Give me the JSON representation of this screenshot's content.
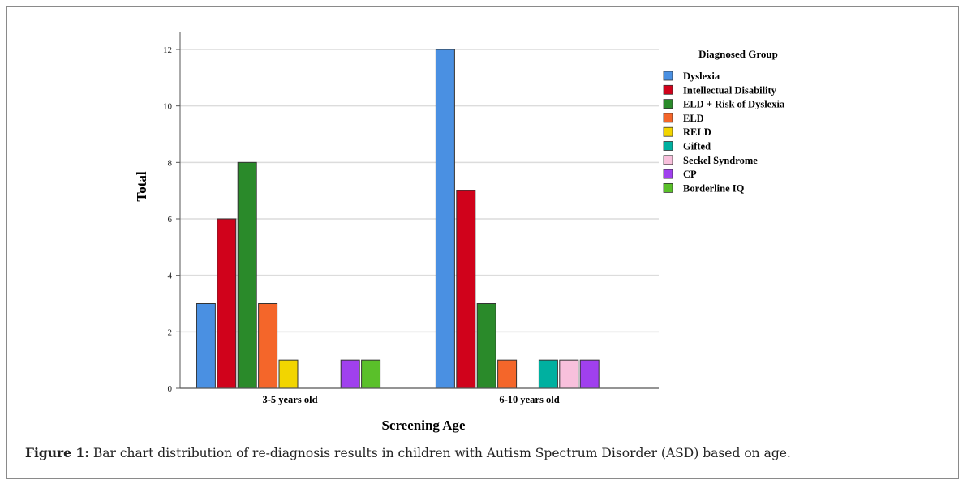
{
  "chart_data": {
    "type": "bar",
    "title": "",
    "xlabel": "Screening Age",
    "ylabel": "Total",
    "ylim": [
      0,
      12
    ],
    "yticks": [
      0,
      2,
      4,
      6,
      8,
      10,
      12
    ],
    "grid": true,
    "legend_title": "Diagnosed Group",
    "legend_position": "right",
    "categories": [
      "3-5 years old",
      "6-10 years old"
    ],
    "series": [
      {
        "name": "Dyslexia",
        "color": "#4a90e2",
        "values": [
          3,
          12
        ]
      },
      {
        "name": "Intellectual Disability",
        "color": "#d0021b",
        "values": [
          6,
          7
        ]
      },
      {
        "name": "ELD + Risk of Dyslexia",
        "color": "#2a8a2a",
        "values": [
          8,
          3
        ]
      },
      {
        "name": "ELD",
        "color": "#f4662a",
        "values": [
          3,
          1
        ]
      },
      {
        "name": "RELD",
        "color": "#f2d500",
        "values": [
          1,
          0
        ]
      },
      {
        "name": "Gifted",
        "color": "#00b0a0",
        "values": [
          0,
          1
        ]
      },
      {
        "name": "Seckel Syndrome",
        "color": "#f8c0dc",
        "values": [
          0,
          1
        ]
      },
      {
        "name": "CP",
        "color": "#a040ee",
        "values": [
          1,
          1
        ]
      },
      {
        "name": "Borderline IQ",
        "color": "#5ac02a",
        "values": [
          1,
          0
        ]
      }
    ]
  },
  "caption": {
    "label": "Figure 1:",
    "text": " Bar chart distribution of re-diagnosis results in children with Autism Spectrum Disorder (ASD) based on age."
  }
}
